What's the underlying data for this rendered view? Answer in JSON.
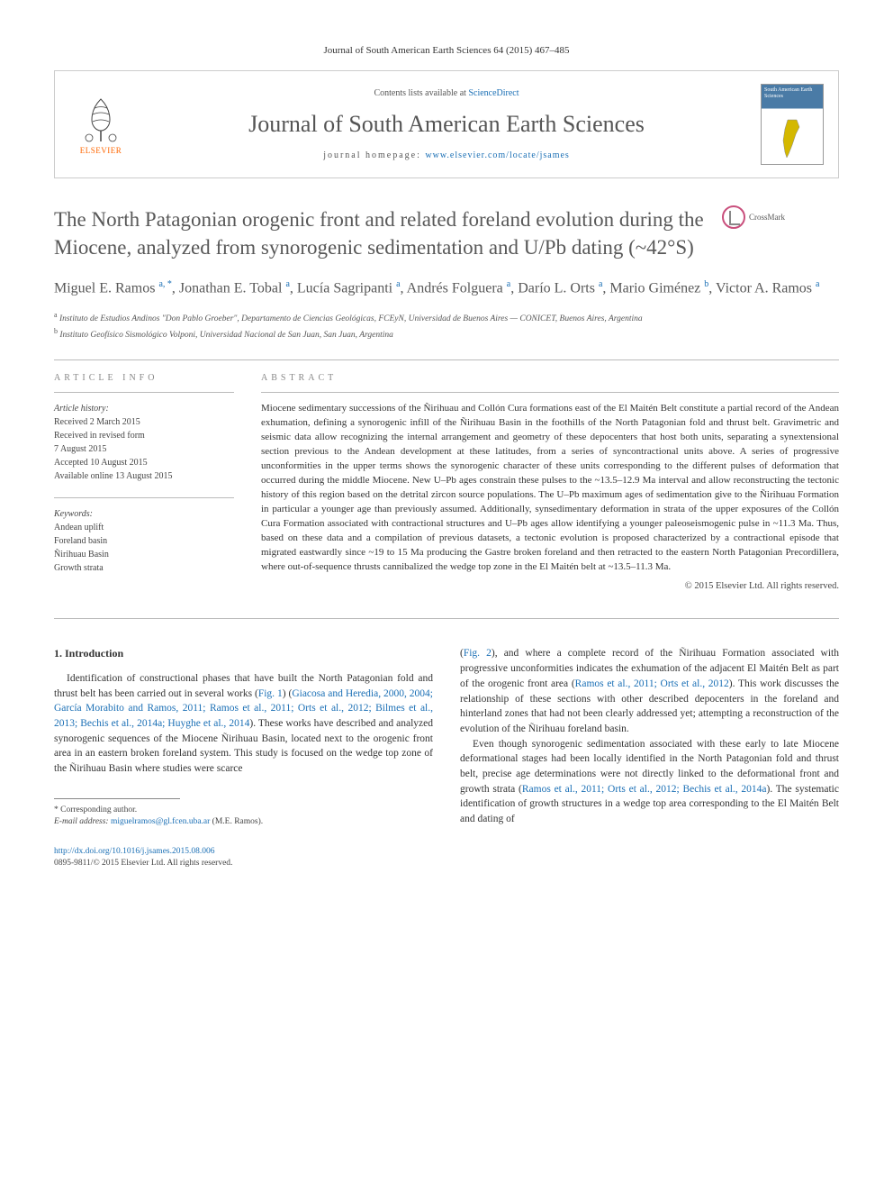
{
  "header": {
    "citation": "Journal of South American Earth Sciences 64 (2015) 467–485"
  },
  "journal_box": {
    "elsevier_label": "ELSEVIER",
    "elsevier_color": "#ff6600",
    "contents_prefix": "Contents lists available at ",
    "contents_link": "ScienceDirect",
    "journal_name": "Journal of South American Earth Sciences",
    "homepage_prefix": "journal homepage: ",
    "homepage_link": "www.elsevier.com/locate/jsames",
    "cover_title": "South American Earth Sciences"
  },
  "crossmark_label": "CrossMark",
  "title": "The North Patagonian orogenic front and related foreland evolution during the Miocene, analyzed from synorogenic sedimentation and U/Pb dating (~42°S)",
  "authors_html": "Miguel E. Ramos <sup>a, *</sup>, Jonathan E. Tobal <sup>a</sup>, Lucía Sagripanti <sup>a</sup>, Andrés Folguera <sup>a</sup>, Darío L. Orts <sup>a</sup>, Mario Giménez <sup>b</sup>, Victor A. Ramos <sup>a</sup>",
  "affiliations": [
    {
      "sup": "a",
      "text": "Instituto de Estudios Andinos \"Don Pablo Groeber\", Departamento de Ciencias Geológicas, FCEyN, Universidad de Buenos Aires — CONICET, Buenos Aires, Argentina"
    },
    {
      "sup": "b",
      "text": "Instituto Geofísico Sismológico Volponi, Universidad Nacional de San Juan, San Juan, Argentina"
    }
  ],
  "article_info": {
    "header": "ARTICLE INFO",
    "history_label": "Article history:",
    "history": [
      "Received 2 March 2015",
      "Received in revised form",
      "7 August 2015",
      "Accepted 10 August 2015",
      "Available online 13 August 2015"
    ],
    "keywords_label": "Keywords:",
    "keywords": [
      "Andean uplift",
      "Foreland basin",
      "Ñirihuau Basin",
      "Growth strata"
    ]
  },
  "abstract": {
    "header": "ABSTRACT",
    "text": "Miocene sedimentary successions of the Ñirihuau and Collón Cura formations east of the El Maitén Belt constitute a partial record of the Andean exhumation, defining a synorogenic infill of the Ñirihuau Basin in the foothills of the North Patagonian fold and thrust belt. Gravimetric and seismic data allow recognizing the internal arrangement and geometry of these depocenters that host both units, separating a synextensional section previous to the Andean development at these latitudes, from a series of syncontractional units above. A series of progressive unconformities in the upper terms shows the synorogenic character of these units corresponding to the different pulses of deformation that occurred during the middle Miocene. New U–Pb ages constrain these pulses to the ~13.5–12.9 Ma interval and allow reconstructing the tectonic history of this region based on the detrital zircon source populations. The U–Pb maximum ages of sedimentation give to the Ñirihuau Formation in particular a younger age than previously assumed. Additionally, synsedimentary deformation in strata of the upper exposures of the Collón Cura Formation associated with contractional structures and U–Pb ages allow identifying a younger paleoseismogenic pulse in ~11.3 Ma. Thus, based on these data and a compilation of previous datasets, a tectonic evolution is proposed characterized by a contractional episode that migrated eastwardly since ~19 to 15 Ma producing the Gastre broken foreland and then retracted to the eastern North Patagonian Precordillera, where out-of-sequence thrusts cannibalized the wedge top zone in the El Maitén belt at ~13.5–11.3 Ma.",
    "copyright": "© 2015 Elsevier Ltd. All rights reserved."
  },
  "body": {
    "heading": "1. Introduction",
    "col1_p1_pre": "Identification of constructional phases that have built the North Patagonian fold and thrust belt has been carried out in several works (",
    "col1_p1_fig": "Fig. 1",
    "col1_p1_mid": ") (",
    "col1_p1_refs": "Giacosa and Heredia, 2000, 2004; García Morabito and Ramos, 2011; Ramos et al., 2011; Orts et al., 2012; Bilmes et al., 2013; Bechis et al., 2014a; Huyghe et al., 2014",
    "col1_p1_post": "). These works have described and analyzed synorogenic sequences of the Miocene Ñirihuau Basin, located next to the orogenic front area in an eastern broken foreland system. This study is focused on the wedge top zone of the Ñirihuau Basin where studies were scarce",
    "col2_p1_pre": "(",
    "col2_p1_fig": "Fig. 2",
    "col2_p1_mid": "), and where a complete record of the Ñirihuau Formation associated with progressive unconformities indicates the exhumation of the adjacent El Maitén Belt as part of the orogenic front area (",
    "col2_p1_refs": "Ramos et al., 2011; Orts et al., 2012",
    "col2_p1_post": "). This work discusses the relationship of these sections with other described depocenters in the foreland and hinterland zones that had not been clearly addressed yet; attempting a reconstruction of the evolution of the Ñirihuau foreland basin.",
    "col2_p2_pre": "Even though synorogenic sedimentation associated with these early to late Miocene deformational stages had been locally identified in the North Patagonian fold and thrust belt, precise age determinations were not directly linked to the deformational front and growth strata (",
    "col2_p2_refs": "Ramos et al., 2011; Orts et al., 2012; Bechis et al., 2014a",
    "col2_p2_post": "). The systematic identification of growth structures in a wedge top area corresponding to the El Maitén Belt and dating of"
  },
  "footnote": {
    "corr": "* Corresponding author.",
    "email_label": "E-mail address: ",
    "email": "miguelramos@gl.fcen.uba.ar",
    "email_suffix": " (M.E. Ramos)."
  },
  "footer": {
    "doi": "http://dx.doi.org/10.1016/j.jsames.2015.08.006",
    "issn_cr": "0895-9811/© 2015 Elsevier Ltd. All rights reserved."
  },
  "colors": {
    "link": "#1a6fb5",
    "text": "#333333",
    "muted": "#585858",
    "elsevier": "#ff6600",
    "crossmark_ring": "#c94f7c",
    "cover_bg": "#4a7ba6"
  }
}
